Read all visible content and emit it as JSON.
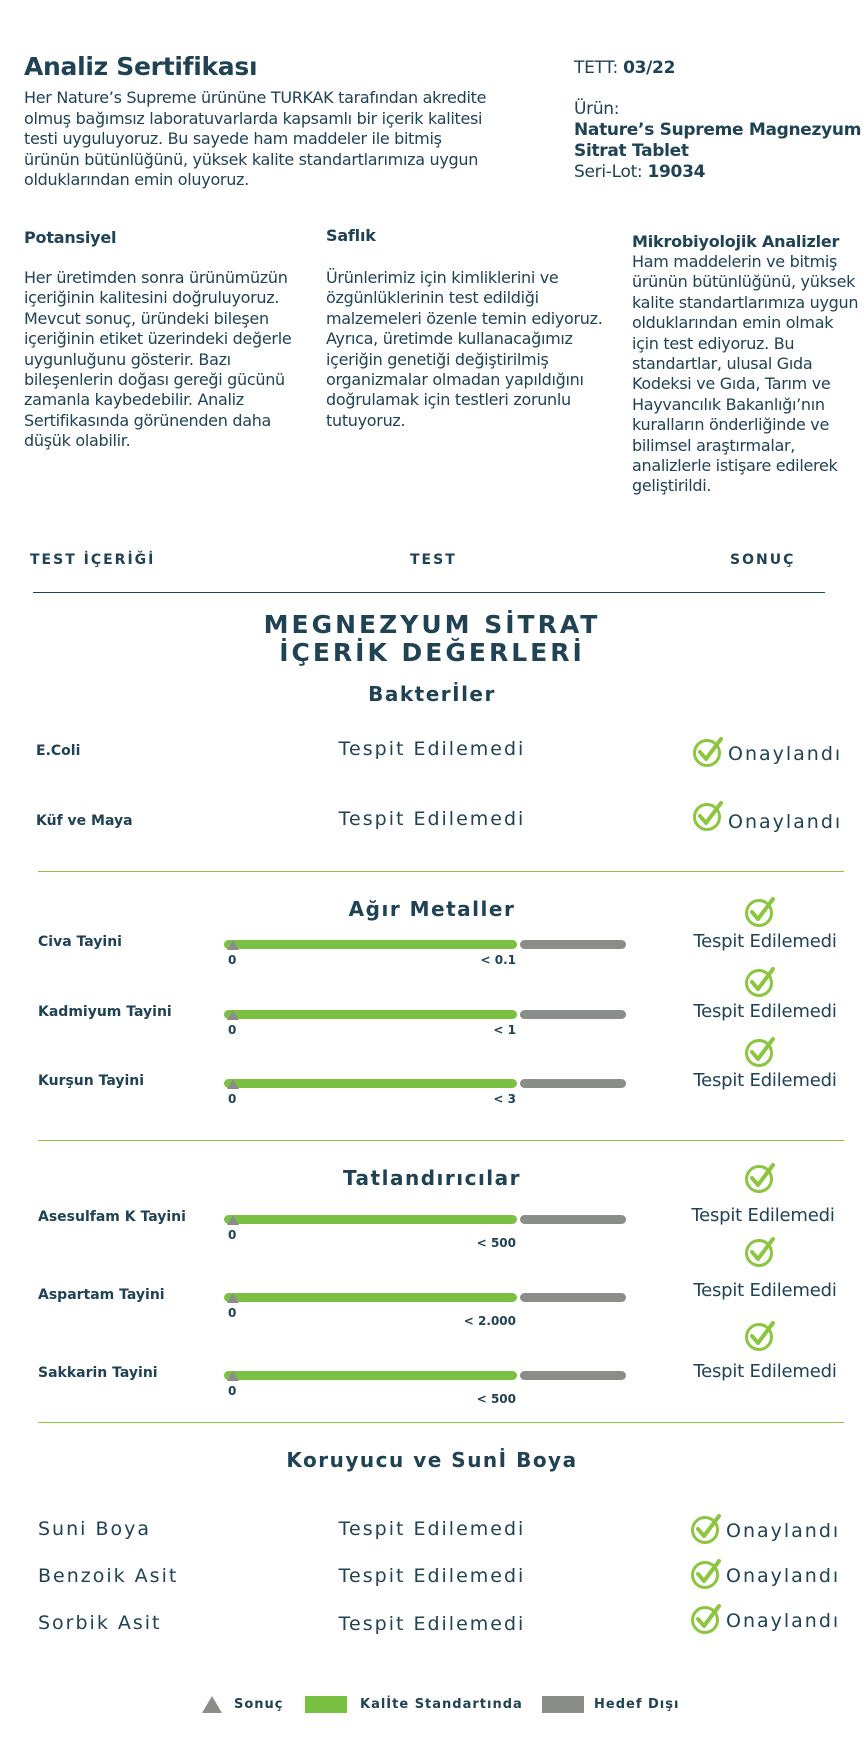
{
  "header": {
    "title": "Analiz Sertifikası",
    "intro": "Her Nature’s Supreme ürününe TURKAK tarafından akredite olmuş bağımsız laboratuvarlarda kapsamlı bir içerik kalitesi testi uyguluyoruz. Bu sayede ham maddeler ile bitmiş ürünün bütünlüğünü, yüksek kalite standartlarımıza uygun olduklarından emin oluyoruz.",
    "tett_label": "TETT:",
    "tett_value": "03/22",
    "product_label": "Ürün:",
    "product_name": "Nature’s Supreme Magnezyum Sitrat Tablet",
    "lot_label": "Seri-Lot:",
    "lot_value": "19034"
  },
  "columns": [
    {
      "title": "Potansiyel",
      "text": "Her üretimden sonra ürünümüzün içeriğinin kalitesini doğruluyoruz. Mevcut sonuç, üründeki bileşen içeriğinin etiket üzerindeki değerle uygunluğunu gösterir. Bazı bileşenlerin doğası gereği gücünü zamanla kaybedebilir. Analiz Sertifikasında görünenden daha düşük olabilir."
    },
    {
      "title": "Saflık",
      "text": "Ürünlerimiz için kimliklerini ve özgünlüklerinin test edildiği malzemeleri özenle temin ediyoruz. Ayrıca, üretimde kullanacağımız içeriğin genetiği değiştirilmiş organizmalar olmadan yapıldığını doğrulamak için testleri zorunlu tutuyoruz."
    },
    {
      "title": "Mikrobiyolojik Analizler",
      "text": "Ham maddelerin ve bitmiş ürünün bütünlüğünü, yüksek kalite standartlarımıza uygun olduklarından emin olmak için test ediyoruz. Bu standartlar, ulusal Gıda Kodeksi ve Gıda, Tarım ve Hayvancılık Bakanlığı’nın kuralların önderliğinde ve bilimsel araştırmalar, analizlerle istişare edilerek geliştirildi."
    }
  ],
  "table_header": {
    "c1": "TEST İÇERİĞİ",
    "c2": "TEST",
    "c3": "SONUÇ"
  },
  "main_title": {
    "line1": "MEGNEZYUM SİTRAT",
    "line2": "İÇERİK DEĞERLERİ"
  },
  "bacteria": {
    "title": "Bakterİler",
    "rows": [
      {
        "label": "E.Coli",
        "test": "Tespit Edilemedi",
        "result": "Onaylandı"
      },
      {
        "label": "Küf ve Maya",
        "test": "Tespit Edilemedi",
        "result": "Onaylandı"
      }
    ]
  },
  "metals": {
    "title": "Ağır Metaller",
    "rows": [
      {
        "label": "Civa Tayini",
        "min": "0",
        "limit": "< 0.1",
        "result": "Tespit Edilemedi",
        "result_fraction": 0
      },
      {
        "label": "Kadmiyum Tayini",
        "min": "0",
        "limit": "< 1",
        "result": "Tespit Edilemedi",
        "result_fraction": 0
      },
      {
        "label": "Kurşun Tayini",
        "min": "0",
        "limit": "< 3",
        "result": "Tespit Edilemedi",
        "result_fraction": 0
      }
    ]
  },
  "sweeteners": {
    "title": "Tatlandırıcılar",
    "rows": [
      {
        "label": "Asesulfam K Tayini",
        "min": "0",
        "limit": "< 500",
        "result": "Tespit Edilemedi",
        "result_fraction": 0
      },
      {
        "label": "Aspartam Tayini",
        "min": "0",
        "limit": "< 2.000",
        "result": "Tespit Edilemedi",
        "result_fraction": 0
      },
      {
        "label": "Sakkarin Tayini",
        "min": "0",
        "limit": "< 500",
        "result": "Tespit Edilemedi",
        "result_fraction": 0
      }
    ]
  },
  "preservatives": {
    "title": "Koruyucu ve Sunİ Boya",
    "rows": [
      {
        "label": "Suni Boya",
        "test": "Tespit Edilemedi",
        "result": "Onaylandı"
      },
      {
        "label": "Benzoik Asit",
        "test": "Tespit Edilemedi",
        "result": "Onaylandı"
      },
      {
        "label": "Sorbik Asit",
        "test": "Tespit Edilemedi",
        "result": "Onaylandı"
      }
    ]
  },
  "legend": {
    "result": "Sonuç",
    "quality": "Kalİte Standartında",
    "out": "Hedef Dışı"
  },
  "colors": {
    "text": "#1f4254",
    "green": "#7ac143",
    "gray": "#8b8d88",
    "check": "#8cc63f"
  }
}
